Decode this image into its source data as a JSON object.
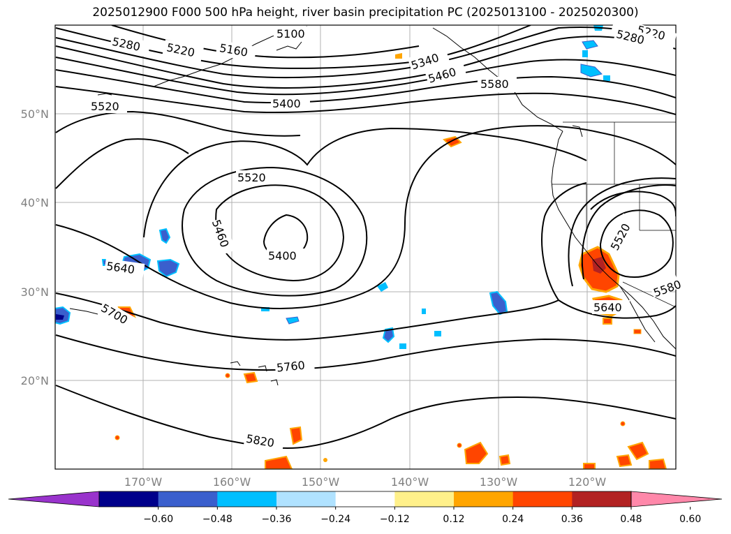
{
  "title": "2025012900 F000 500 hPa height, river basin precipitation PC (2025013100 - 2025020300)",
  "latitude_labels": [
    "50°N",
    "40°N",
    "30°N",
    "20°N"
  ],
  "longitude_labels": [
    "170°W",
    "160°W",
    "150°W",
    "140°W",
    "130°W",
    "120°W"
  ],
  "contour_labels": [
    "5100",
    "5220",
    "5280",
    "5160",
    "5220",
    "5280",
    "5340",
    "5460",
    "5580",
    "5400",
    "5520",
    "5520",
    "5460",
    "5400",
    "5640",
    "5700",
    "5520",
    "5580",
    "5640",
    "5760",
    "5820"
  ],
  "colorbar": {
    "tick_labels": [
      "−0.60",
      "−0.48",
      "−0.36",
      "−0.24",
      "−0.12",
      "0.12",
      "0.24",
      "0.36",
      "0.48",
      "0.60"
    ],
    "colors": [
      "#9933cc",
      "#00008b",
      "#3a5fcd",
      "#00bfff",
      "#b0e2ff",
      "#ffffff",
      "#fff08a",
      "#ffa500",
      "#ff4500",
      "#b22222",
      "#ff88aa"
    ]
  },
  "colors": {
    "contour": "#000000",
    "grid": "#b0b0b0",
    "coast": "#000000"
  }
}
